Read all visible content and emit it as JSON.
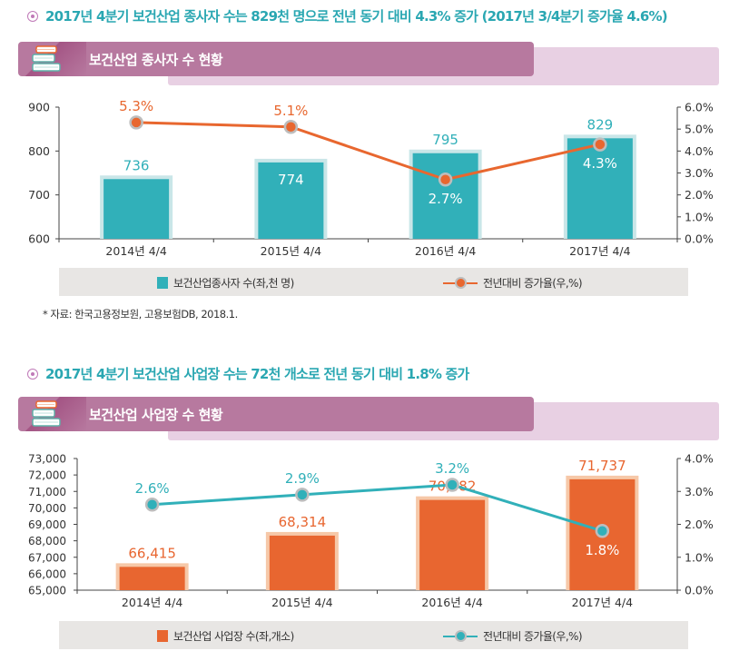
{
  "sections": [
    {
      "headline": "2017년 4분기 보건산업 종사자 수는 829천 명으로 전년 동기 대비 4.3% 증가 (2017년 3/4분기 증가율 4.6%)",
      "banner_title": "보건산업 종사자 수 현황",
      "legend": {
        "bar_label": "보건산업종사자 수(좌,천 명)",
        "line_label": "전년대비 증가율(우,%)"
      },
      "source": "* 자료: 한국고용정보원, 고용보험DB, 2018.1."
    },
    {
      "headline": "2017년 4분기 보건산업 사업장 수는 72천 개소로 전년 동기 대비 1.8% 증가",
      "banner_title": "보건산업 사업장 수 현황",
      "legend": {
        "bar_label": "보건산업 사업장 수(좌,개소)",
        "line_label": "전년대비 증가율(우,%)"
      }
    }
  ],
  "chart_data": [
    {
      "type": "bar",
      "title": "보건산업 종사자 수 현황",
      "categories": [
        "2014년 4/4",
        "2015년 4/4",
        "2016년 4/4",
        "2017년 4/4"
      ],
      "series": [
        {
          "name": "보건산업종사자 수(좌,천 명)",
          "type": "bar",
          "axis": "left",
          "values": [
            736,
            774,
            795,
            829
          ],
          "labels": [
            "736",
            "774",
            "795",
            "829"
          ],
          "color": "#31b0b9",
          "border": "#c9e6e8"
        },
        {
          "name": "전년대비 증가율(우,%)",
          "type": "line",
          "axis": "right",
          "values": [
            5.3,
            5.1,
            2.7,
            4.3
          ],
          "labels": [
            "5.3%",
            "5.1%",
            "2.7%",
            "4.3%"
          ],
          "color": "#e8672f"
        }
      ],
      "ylim_left": [
        600,
        900
      ],
      "yticks_left": [
        600,
        700,
        800,
        900
      ],
      "yticklabels_left": [
        "600",
        "700",
        "800",
        "900"
      ],
      "ylim_right": [
        0,
        6
      ],
      "yticks_right": [
        0,
        1,
        2,
        3,
        4,
        5,
        6
      ],
      "yticklabels_right": [
        "0.0%",
        "1.0%",
        "2.0%",
        "3.0%",
        "4.0%",
        "5.0%",
        "6.0%"
      ],
      "grid": false,
      "legend_position": "bottom"
    },
    {
      "type": "bar",
      "title": "보건산업 사업장 수 현황",
      "categories": [
        "2014년 4/4",
        "2015년 4/4",
        "2016년 4/4",
        "2017년 4/4"
      ],
      "series": [
        {
          "name": "보건산업 사업장 수(좌,개소)",
          "type": "bar",
          "axis": "left",
          "values": [
            66415,
            68314,
            70482,
            71737
          ],
          "labels": [
            "66,415",
            "68,314",
            "70,482",
            "71,737"
          ],
          "color": "#e86630",
          "border": "#f6c8a8"
        },
        {
          "name": "전년대비 증가율(우,%)",
          "type": "line",
          "axis": "right",
          "values": [
            2.6,
            2.9,
            3.2,
            1.8
          ],
          "labels": [
            "2.6%",
            "2.9%",
            "3.2%",
            "1.8%"
          ],
          "color": "#31b0b9"
        }
      ],
      "ylim_left": [
        65000,
        73000
      ],
      "yticks_left": [
        65000,
        66000,
        67000,
        68000,
        69000,
        70000,
        71000,
        72000,
        73000
      ],
      "yticklabels_left": [
        "65,000",
        "66,000",
        "67,000",
        "68,000",
        "69,000",
        "70,000",
        "71,000",
        "72,000",
        "73,000"
      ],
      "ylim_right": [
        0,
        4
      ],
      "yticks_right": [
        0,
        1,
        2,
        3,
        4
      ],
      "yticklabels_right": [
        "0.0%",
        "1.0%",
        "2.0%",
        "3.0%",
        "4.0%"
      ],
      "grid": false,
      "legend_position": "bottom"
    }
  ]
}
